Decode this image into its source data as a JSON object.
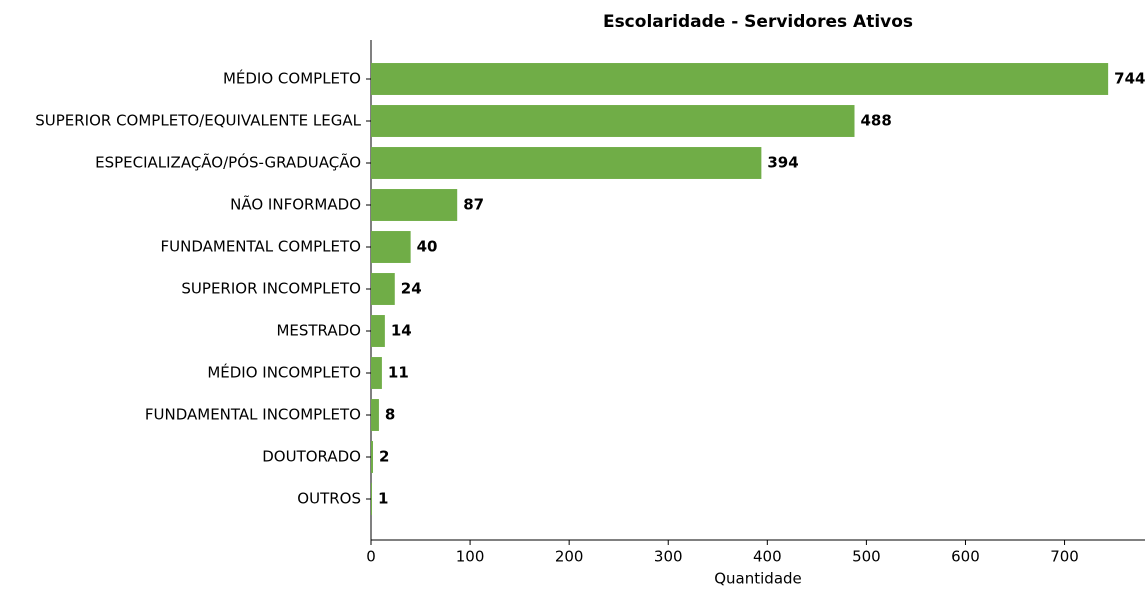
{
  "chart_data": {
    "type": "barh",
    "title": "Escolaridade - Servidores Ativos",
    "xlabel": "Quantidade",
    "categories": [
      "MÉDIO COMPLETO",
      "SUPERIOR COMPLETO/EQUIVALENTE LEGAL",
      "ESPECIALIZAÇÃO/PÓS-GRADUAÇÃO",
      "NÃO INFORMADO",
      "FUNDAMENTAL COMPLETO",
      "SUPERIOR INCOMPLETO",
      "MESTRADO",
      "MÉDIO INCOMPLETO",
      "FUNDAMENTAL INCOMPLETO",
      "DOUTORADO",
      "OUTROS"
    ],
    "values": [
      744,
      488,
      394,
      87,
      40,
      24,
      14,
      11,
      8,
      2,
      1
    ],
    "color": "#70ad47",
    "xlim": [
      0,
      781.2
    ],
    "xticks": [
      0,
      100,
      200,
      300,
      400,
      500,
      600,
      700
    ]
  }
}
